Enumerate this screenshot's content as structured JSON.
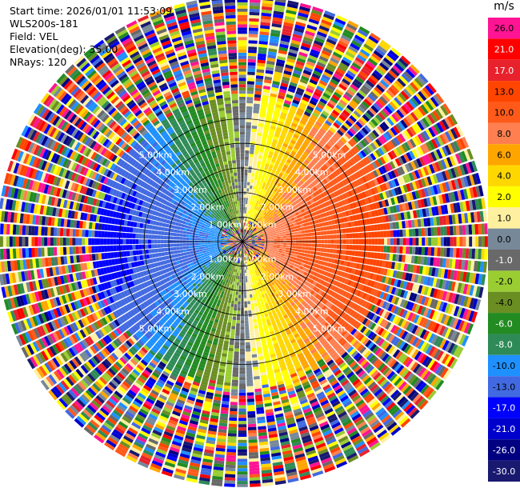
{
  "header": {
    "start_time": "Start time: 2026/01/01 11:53:09",
    "instrument": "WLS200s-181",
    "field": "Field: VEL",
    "elevation": "Elevation(deg): 35.00",
    "nrays": "NRays: 120"
  },
  "colorbar": {
    "unit": "m/s",
    "bins": [
      {
        "label": "26.0",
        "color": "#ff1493"
      },
      {
        "label": "21.0",
        "color": "#ff0000"
      },
      {
        "label": "17.0",
        "color": "#e8222d"
      },
      {
        "label": "13.0",
        "color": "#ff4500"
      },
      {
        "label": "10.0",
        "color": "#ff5a1a"
      },
      {
        "label": "8.0",
        "color": "#ff7f50"
      },
      {
        "label": "6.0",
        "color": "#ffa500"
      },
      {
        "label": "4.0",
        "color": "#ffd700"
      },
      {
        "label": "2.0",
        "color": "#ffff00"
      },
      {
        "label": "1.0",
        "color": "#fff0a0"
      },
      {
        "label": "0.0",
        "color": "#778899"
      },
      {
        "label": "-1.0",
        "color": "#696969"
      },
      {
        "label": "-2.0",
        "color": "#9acd32"
      },
      {
        "label": "-4.0",
        "color": "#6b8e23"
      },
      {
        "label": "-6.0",
        "color": "#228b22"
      },
      {
        "label": "-8.0",
        "color": "#2e8b57"
      },
      {
        "label": "-10.0",
        "color": "#1e90ff"
      },
      {
        "label": "-13.0",
        "color": "#4169e1"
      },
      {
        "label": "-17.0",
        "color": "#0000ff"
      },
      {
        "label": "-21.0",
        "color": "#0000cd"
      },
      {
        "label": "-26.0",
        "color": "#000080"
      },
      {
        "label": "-30.0",
        "color": "#191970"
      }
    ]
  },
  "chart_data": {
    "type": "heatmap",
    "projection": "polar PPI",
    "field": "VEL",
    "unit": "m/s",
    "elevation_deg": 35.0,
    "nrays": 120,
    "max_range_km": 6.0,
    "noise_begins_km": 3.6,
    "ring_labels": [
      "1.00km",
      "2.00km",
      "3.00km",
      "4.00km",
      "5.00km"
    ],
    "range_rings_km": [
      1,
      2,
      3,
      4,
      5
    ],
    "radials": "every 30 deg",
    "pattern": "east half positive (toward orange/red), west half negative (blue/green), near-zero north-south band"
  }
}
